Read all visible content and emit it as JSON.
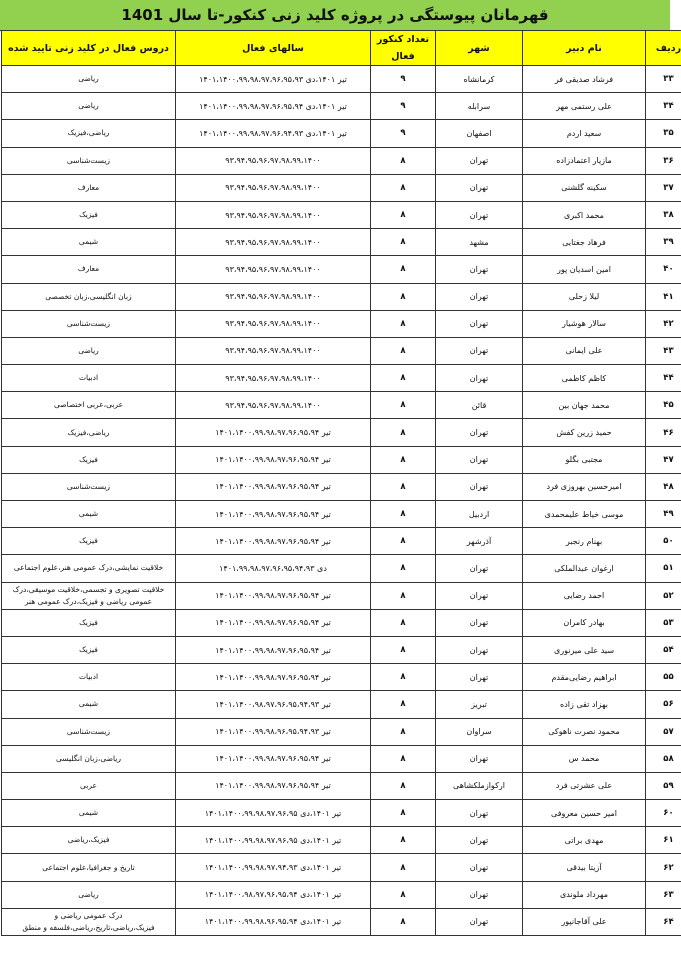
{
  "title": "قهرمانان پیوستگی در پروژه کلید زنی کنکور-تا سال 1401",
  "colors": {
    "title_bg": "#92d050",
    "header_bg": "#ffff00"
  },
  "headers": {
    "row": "ردیف",
    "name": "نام دبیر",
    "city": "شهر",
    "count": "تعداد کنکور فعال",
    "years": "سالهای فعال",
    "subjects": "دروس فعال در کلید زنی تایید شده"
  },
  "rows": [
    {
      "row": "۳۳",
      "name": "فرشاد صدیقی فر",
      "city": "کرمانشاه",
      "count": "۹",
      "years": "تیر ۱۴۰۱،دی ۱۴۰۱،۱۴۰۰،۹۹،۹۸،۹۷،۹۶،۹۵،۹۳",
      "subjects": "ریاضی"
    },
    {
      "row": "۳۴",
      "name": "علی رستمی مهر",
      "city": "سرابله",
      "count": "۹",
      "years": "تیر ۱۴۰۱،دی ۱۴۰۱،۱۴۰۰،۹۹،۹۸،۹۷،۹۶،۹۵،۹۴",
      "subjects": "ریاضی"
    },
    {
      "row": "۳۵",
      "name": "سعید اردم",
      "city": "اصفهان",
      "count": "۹",
      "years": "تیر ۱۴۰۱،دی ۱۴۰۱،۱۴۰۰،۹۹،۹۸،۹۷،۹۶،۹۴،۹۳",
      "subjects": "ریاضی،فیزیک"
    },
    {
      "row": "۳۶",
      "name": "مازیار اعتمادزاده",
      "city": "تهران",
      "count": "۸",
      "years": "۹۳،۹۴،۹۵،۹۶،۹۷،۹۸،۹۹،۱۴۰۰",
      "subjects": "زیست‌شناسی"
    },
    {
      "row": "۳۷",
      "name": "سکینه گلشنی",
      "city": "تهران",
      "count": "۸",
      "years": "۹۳،۹۴،۹۵،۹۶،۹۷،۹۸،۹۹،۱۴۰۰",
      "subjects": "معارف"
    },
    {
      "row": "۳۸",
      "name": "محمد اکبری",
      "city": "تهران",
      "count": "۸",
      "years": "۹۳،۹۴،۹۵،۹۶،۹۷،۹۸،۹۹،۱۴۰۰",
      "subjects": "فیزیک"
    },
    {
      "row": "۳۹",
      "name": "فرهاد جغتایی",
      "city": "مشهد",
      "count": "۸",
      "years": "۹۳،۹۴،۹۵،۹۶،۹۷،۹۸،۹۹،۱۴۰۰",
      "subjects": "شیمی"
    },
    {
      "row": "۴۰",
      "name": "امین اسدیان پور",
      "city": "تهران",
      "count": "۸",
      "years": "۹۳،۹۴،۹۵،۹۶،۹۷،۹۸،۹۹،۱۴۰۰",
      "subjects": "معارف"
    },
    {
      "row": "۴۱",
      "name": "لیلا زحلی",
      "city": "تهران",
      "count": "۸",
      "years": "۹۳،۹۴،۹۵،۹۶،۹۷،۹۸،۹۹،۱۴۰۰",
      "subjects": "زبان انگلیسی،زبان تخصصی"
    },
    {
      "row": "۴۲",
      "name": "سالار هوشیار",
      "city": "تهران",
      "count": "۸",
      "years": "۹۳،۹۴،۹۵،۹۶،۹۷،۹۸،۹۹،۱۴۰۰",
      "subjects": "زیست‌شناسی"
    },
    {
      "row": "۴۳",
      "name": "علی ایمانی",
      "city": "تهران",
      "count": "۸",
      "years": "۹۳،۹۴،۹۵،۹۶،۹۷،۹۸،۹۹،۱۴۰۰",
      "subjects": "ریاضی"
    },
    {
      "row": "۴۴",
      "name": "کاظم کاظمی",
      "city": "تهران",
      "count": "۸",
      "years": "۹۳،۹۴،۹۵،۹۶،۹۷،۹۸،۹۹،۱۴۰۰",
      "subjects": "ادبیات"
    },
    {
      "row": "۴۵",
      "name": "محمد جهان بین",
      "city": "قائن",
      "count": "۸",
      "years": "۹۳،۹۴،۹۵،۹۶،۹۷،۹۸،۹۹،۱۴۰۰",
      "subjects": "عربی،عربی اختصاصی"
    },
    {
      "row": "۴۶",
      "name": "حمید زرین کفش",
      "city": "تهران",
      "count": "۸",
      "years": "تیر ۱۴۰۱،۱۴۰۰،۹۹،۹۸،۹۷،۹۶،۹۵،۹۴",
      "subjects": "ریاضی،فیزیک"
    },
    {
      "row": "۴۷",
      "name": "مجتبی بگلو",
      "city": "تهران",
      "count": "۸",
      "years": "تیر ۱۴۰۱،۱۴۰۰،۹۹،۹۸،۹۷،۹۶،۹۵،۹۴",
      "subjects": "فیزیک"
    },
    {
      "row": "۴۸",
      "name": "امیرحسین بهروزی فرد",
      "city": "تهران",
      "count": "۸",
      "years": "تیر ۱۴۰۱،۱۴۰۰،۹۹،۹۸،۹۷،۹۶،۹۵،۹۴",
      "subjects": "زیست‌شناسی"
    },
    {
      "row": "۴۹",
      "name": "موسی خیاط علیمحمدی",
      "city": "اردبیل",
      "count": "۸",
      "years": "تیر ۱۴۰۱،۱۴۰۰،۹۹،۹۸،۹۷،۹۶،۹۵،۹۴",
      "subjects": "شیمی"
    },
    {
      "row": "۵۰",
      "name": "بهنام رنجبر",
      "city": "آذرشهر",
      "count": "۸",
      "years": "تیر ۱۴۰۱،۱۴۰۰،۹۹،۹۸،۹۷،۹۶،۹۵،۹۴",
      "subjects": "فیزیک"
    },
    {
      "row": "۵۱",
      "name": "ارغوان عبدالملکی",
      "city": "تهران",
      "count": "۸",
      "years": "دی ۱۴۰۱،۹۹،۹۸،۹۷،۹۶،۹۵،۹۴،۹۳",
      "subjects": "خلاقیت نمایشی،درک عمومی هنر،علوم اجتماعی"
    },
    {
      "row": "۵۲",
      "name": "احمد رضایی",
      "city": "تهران",
      "count": "۸",
      "years": "تیر ۱۴۰۱،۱۴۰۰،۹۹،۹۸،۹۷،۹۶،۹۵،۹۴",
      "subjects": "خلاقیت تصویری و تجسمی،خلاقیت موسیقی،درک عمومی ریاضی و فیزیک،درک عمومی هنر"
    },
    {
      "row": "۵۳",
      "name": "بهادر کامران",
      "city": "تهران",
      "count": "۸",
      "years": "تیر ۱۴۰۱،۱۴۰۰،۹۹،۹۸،۹۷،۹۶،۹۵،۹۴",
      "subjects": "فیزیک"
    },
    {
      "row": "۵۴",
      "name": "سید علی میرنوری",
      "city": "تهران",
      "count": "۸",
      "years": "تیر ۱۴۰۱،۱۴۰۰،۹۹،۹۸،۹۷،۹۶،۹۵،۹۴",
      "subjects": "فیزیک"
    },
    {
      "row": "۵۵",
      "name": "ابراهیم رضایی‌مقدم",
      "city": "تهران",
      "count": "۸",
      "years": "تیر ۱۴۰۱،۱۴۰۰،۹۹،۹۸،۹۷،۹۶،۹۵،۹۴",
      "subjects": "ادبیات"
    },
    {
      "row": "۵۶",
      "name": "بهزاد تقی زاده",
      "city": "تبریز",
      "count": "۸",
      "years": "تیر ۱۴۰۱،۱۴۰۰،۹۸،۹۷،۹۶،۹۵،۹۴،۹۳",
      "subjects": "شیمی"
    },
    {
      "row": "۵۷",
      "name": "محمود نصرت ناهوکی",
      "city": "سراوان",
      "count": "۸",
      "years": "تیر ۱۴۰۱،۱۴۰۰،۹۹،۹۸،۹۶،۹۵،۹۴،۹۳",
      "subjects": "زیست‌شناسی"
    },
    {
      "row": "۵۸",
      "name": "محمد س",
      "city": "تهران",
      "count": "۸",
      "years": "تیر ۱۴۰۱،۱۴۰۰،۹۹،۹۸،۹۷،۹۶،۹۵،۹۴",
      "subjects": "ریاضی،زبان انگلیسی"
    },
    {
      "row": "۵۹",
      "name": "علی عشرتی فرد",
      "city": "ارکوازملکشاهی",
      "count": "۸",
      "years": "تیر ۱۴۰۱،۱۴۰۰،۹۹،۹۸،۹۷،۹۶،۹۵،۹۴",
      "subjects": "عربی"
    },
    {
      "row": "۶۰",
      "name": "امیر حسین معروفی",
      "city": "تهران",
      "count": "۸",
      "years": "تیر ۱۴۰۱،دی ۱۴۰۱،۱۴۰۰،۹۹،۹۸،۹۷،۹۶،۹۵",
      "subjects": "شیمی"
    },
    {
      "row": "۶۱",
      "name": "مهدی براتی",
      "city": "تهران",
      "count": "۸",
      "years": "تیر ۱۴۰۱،دی ۱۴۰۱،۱۴۰۰،۹۹،۹۸،۹۷،۹۶،۹۵",
      "subjects": "فیزیک،ریاضی"
    },
    {
      "row": "۶۲",
      "name": "آزیتا بیدقی",
      "city": "تهران",
      "count": "۸",
      "years": "تیر ۱۴۰۱،دی ۱۴۰۱،۱۴۰۰،۹۹،۹۸،۹۷،۹۴،۹۳",
      "subjects": "تاریخ و جغرافیا،علوم اجتماعی"
    },
    {
      "row": "۶۳",
      "name": "مهرداد ملوندی",
      "city": "تهران",
      "count": "۸",
      "years": "تیر ۱۴۰۱،دی ۱۴۰۱،۱۴۰۰،۹۸،۹۷،۹۶،۹۵،۹۴",
      "subjects": "ریاضی"
    },
    {
      "row": "۶۴",
      "name": "علی آقاجانپور",
      "city": "تهران",
      "count": "۸",
      "years": "تیر ۱۴۰۱،دی ۱۴۰۱،۱۴۰۰،۹۹،۹۸،۹۶،۹۵،۹۴",
      "subjects": "درک عمومی ریاضی و فیزیک،ریاضی،تاریخ،ریاضی،فلسفه و منطق"
    }
  ]
}
